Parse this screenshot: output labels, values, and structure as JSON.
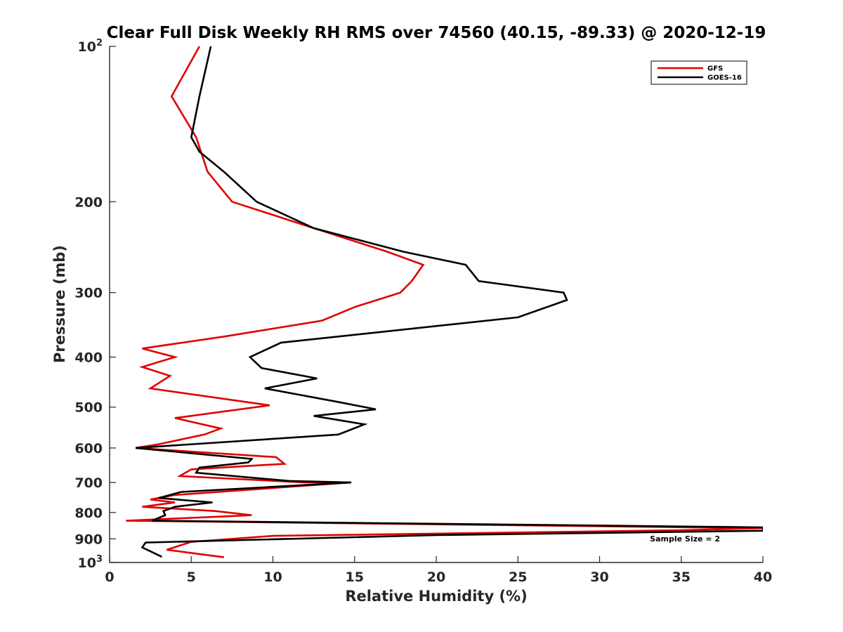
{
  "chart_data": {
    "type": "line",
    "title": "Clear Full Disk Weekly RH RMS over 74560 (40.15, -89.33) @ 2020-12-19",
    "xlabel": "Relative Humidity (%)",
    "ylabel": "Pressure (mb)",
    "xlim": [
      0,
      40
    ],
    "ylim": [
      100,
      1000
    ],
    "yscale": "log",
    "y_reversed": true,
    "grid": false,
    "legend_position": "top-right",
    "x_ticks": [
      "0",
      "5",
      "10",
      "15",
      "20",
      "25",
      "30",
      "35",
      "40"
    ],
    "y_ticks": [
      {
        "value": 100,
        "base": "10",
        "exp": "2"
      },
      {
        "value": 200,
        "label": "200"
      },
      {
        "value": 300,
        "label": "300"
      },
      {
        "value": 400,
        "label": "400"
      },
      {
        "value": 500,
        "label": "500"
      },
      {
        "value": 600,
        "label": "600"
      },
      {
        "value": 700,
        "label": "700"
      },
      {
        "value": 800,
        "label": "800"
      },
      {
        "value": 900,
        "label": "900"
      },
      {
        "value": 1000,
        "base": "10",
        "exp": "3"
      }
    ],
    "annotation": "Sample Size = 2",
    "series": [
      {
        "name": "GFS",
        "color": "#e00000",
        "points": [
          [
            5.5,
            100
          ],
          [
            3.8,
            125
          ],
          [
            5.3,
            150
          ],
          [
            6.0,
            175
          ],
          [
            7.5,
            200
          ],
          [
            12.5,
            225
          ],
          [
            17,
            250
          ],
          [
            19.2,
            265
          ],
          [
            18.5,
            285
          ],
          [
            17.8,
            300
          ],
          [
            15,
            320
          ],
          [
            13,
            340
          ],
          [
            7,
            365
          ],
          [
            2,
            385
          ],
          [
            4,
            400
          ],
          [
            2,
            418
          ],
          [
            3.7,
            435
          ],
          [
            2.5,
            460
          ],
          [
            9.8,
            496
          ],
          [
            4,
            525
          ],
          [
            6.8,
            550
          ],
          [
            5.8,
            565
          ],
          [
            3,
            590
          ],
          [
            1.6,
            600
          ],
          [
            10.2,
            625
          ],
          [
            10.7,
            644
          ],
          [
            5,
            660
          ],
          [
            4.3,
            680
          ],
          [
            12,
            700
          ],
          [
            14.7,
            700
          ],
          [
            4,
            740
          ],
          [
            2.5,
            755
          ],
          [
            4,
            765
          ],
          [
            2,
            780
          ],
          [
            3.5,
            785
          ],
          [
            6.5,
            795
          ],
          [
            8.7,
            810
          ],
          [
            1,
            830
          ],
          [
            40,
            858
          ],
          [
            35,
            866
          ],
          [
            10,
            888
          ],
          [
            5,
            912
          ],
          [
            3.5,
            945
          ],
          [
            7,
            977
          ]
        ]
      },
      {
        "name": "GOES-16",
        "color": "#000000",
        "points": [
          [
            6.2,
            100
          ],
          [
            5.5,
            125
          ],
          [
            5,
            150
          ],
          [
            5.5,
            160
          ],
          [
            7,
            175
          ],
          [
            9,
            200
          ],
          [
            12.5,
            225
          ],
          [
            18,
            250
          ],
          [
            21.8,
            265
          ],
          [
            22.6,
            285
          ],
          [
            27.8,
            300
          ],
          [
            28,
            310
          ],
          [
            25,
            335
          ],
          [
            10.5,
            375
          ],
          [
            8.6,
            400
          ],
          [
            9.3,
            420
          ],
          [
            12.7,
            440
          ],
          [
            9.5,
            460
          ],
          [
            14.2,
            490
          ],
          [
            16.3,
            505
          ],
          [
            12.5,
            520
          ],
          [
            15.6,
            540
          ],
          [
            14,
            565
          ],
          [
            1.6,
            600
          ],
          [
            8.7,
            630
          ],
          [
            8.5,
            640
          ],
          [
            5.5,
            655
          ],
          [
            5.3,
            670
          ],
          [
            11,
            695
          ],
          [
            14.8,
            700
          ],
          [
            4.4,
            730
          ],
          [
            3,
            750
          ],
          [
            6.3,
            765
          ],
          [
            4,
            780
          ],
          [
            3.3,
            795
          ],
          [
            3.4,
            810
          ],
          [
            2.6,
            830
          ],
          [
            40,
            855
          ],
          [
            40,
            868
          ],
          [
            20,
            885
          ],
          [
            2.2,
            915
          ],
          [
            2,
            935
          ],
          [
            3.2,
            975
          ]
        ]
      }
    ]
  }
}
